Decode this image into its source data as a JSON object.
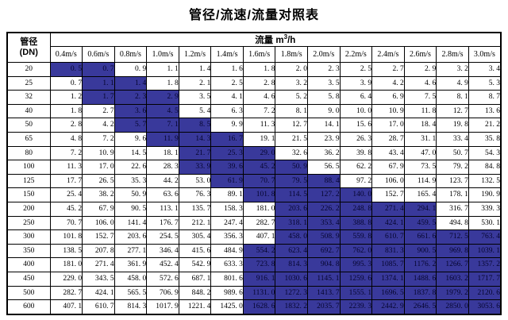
{
  "title": "管径/流速/流量对照表",
  "colors": {
    "highlight_bg": "#39399B",
    "border": "#000000",
    "text": "#000000",
    "page_bg": "#FFFFFF"
  },
  "table": {
    "corner": {
      "line1": "管径",
      "line2": "(DN)"
    },
    "flow": {
      "prefix": "流量 m",
      "sup": "3",
      "suffix": "/h"
    },
    "velocity_headers": [
      "0.4m/s",
      "0.6m/s",
      "0.8m/s",
      "1.0m/s",
      "1.2m/s",
      "1.4m/s",
      "1.6m/s",
      "1.8m/s",
      "2.0m/s",
      "2.2m/s",
      "2.4m/s",
      "2.6m/s",
      "2.8m/s",
      "3.0m/s"
    ],
    "rows": [
      {
        "dn": "20",
        "values": [
          "0. 5",
          "0. 7",
          "0. 9",
          "1. 1",
          "1. 4",
          "1. 6",
          "1. 8",
          "2. 0",
          "2. 3",
          "2. 5",
          "2. 7",
          "2. 9",
          "3. 2",
          "3. 4"
        ],
        "hl": [
          0,
          1
        ]
      },
      {
        "dn": "25",
        "values": [
          "0. 7",
          "1. 1",
          "1. 4",
          "1. 8",
          "2. 1",
          "2. 5",
          "2. 8",
          "3. 2",
          "3. 5",
          "3. 9",
          "4. 2",
          "4. 6",
          "4. 9",
          "5. 3"
        ],
        "hl": [
          1,
          2
        ]
      },
      {
        "dn": "32",
        "values": [
          "1. 2",
          "1. 7",
          "2. 3",
          "2. 9",
          "3. 5",
          "4. 1",
          "4. 6",
          "5. 2",
          "5. 8",
          "6. 4",
          "6. 9",
          "7. 5",
          "8. 1",
          "8. 7"
        ],
        "hl": [
          1,
          3
        ]
      },
      {
        "dn": "40",
        "values": [
          "1. 8",
          "2. 7",
          "3. 6",
          "4. 5",
          "5. 4",
          "6. 3",
          "7. 2",
          "8. 1",
          "9. 0",
          "10. 0",
          "10. 9",
          "11. 8",
          "12. 7",
          "13. 6"
        ],
        "hl": [
          2,
          3
        ]
      },
      {
        "dn": "50",
        "values": [
          "2. 8",
          "4. 2",
          "5. 7",
          "7. 1",
          "8. 5",
          "9. 9",
          "11. 3",
          "12. 7",
          "14. 1",
          "15. 6",
          "17. 0",
          "18. 4",
          "19. 8",
          "21. 2"
        ],
        "hl": [
          2,
          4
        ]
      },
      {
        "dn": "65",
        "values": [
          "4. 8",
          "7. 2",
          "9. 6",
          "11. 9",
          "14. 3",
          "16. 7",
          "19. 1",
          "21. 5",
          "23. 9",
          "26. 3",
          "28. 7",
          "31. 1",
          "33. 4",
          "35. 8"
        ],
        "hl": [
          3,
          5
        ]
      },
      {
        "dn": "80",
        "values": [
          "7. 2",
          "10. 9",
          "14. 5",
          "18. 1",
          "21. 7",
          "25. 3",
          "29. 0",
          "32. 6",
          "36. 2",
          "39. 8",
          "43. 4",
          "47. 0",
          "50. 7",
          "54. 3"
        ],
        "hl": [
          4,
          6
        ]
      },
      {
        "dn": "100",
        "values": [
          "11. 3",
          "17. 0",
          "22. 6",
          "28. 3",
          "33. 9",
          "39. 6",
          "45. 2",
          "50. 9",
          "56. 5",
          "62. 2",
          "67. 9",
          "73. 5",
          "79. 2",
          "84. 8"
        ],
        "hl": [
          4,
          7
        ]
      },
      {
        "dn": "125",
        "values": [
          "17. 7",
          "26. 5",
          "35. 3",
          "44. 2",
          "53. 0",
          "61. 9",
          "70. 7",
          "79. 5",
          "88. 4",
          "97. 2",
          "106. 0",
          "114. 9",
          "123. 7",
          "132. 5"
        ],
        "hl": [
          5,
          8
        ]
      },
      {
        "dn": "150",
        "values": [
          "25. 4",
          "38. 2",
          "50. 9",
          "63. 6",
          "76. 3",
          "89. 1",
          "101. 8",
          "114. 5",
          "127. 2",
          "140. 0",
          "152. 7",
          "165. 4",
          "178. 1",
          "190. 9"
        ],
        "hl": [
          6,
          9
        ]
      },
      {
        "dn": "200",
        "values": [
          "45. 2",
          "67. 9",
          "90. 5",
          "113. 1",
          "135. 7",
          "158. 3",
          "181. 0",
          "203. 6",
          "226. 2",
          "248. 8",
          "271. 4",
          "294. 1",
          "316. 7",
          "339. 3"
        ],
        "hl": [
          7,
          11
        ]
      },
      {
        "dn": "250",
        "values": [
          "70. 7",
          "106. 0",
          "141. 4",
          "176. 7",
          "212. 1",
          "247. 4",
          "282. 7",
          "318. 1",
          "353. 4",
          "388. 8",
          "424. 1",
          "459. 5",
          "494. 8",
          "530. 1"
        ],
        "hl": [
          7,
          11
        ]
      },
      {
        "dn": "300",
        "values": [
          "101. 8",
          "152. 7",
          "203. 6",
          "254. 5",
          "305. 4",
          "356. 3",
          "407. 1",
          "458. 0",
          "508. 9",
          "559. 8",
          "610. 7",
          "661. 6",
          "712. 5",
          "763. 4"
        ],
        "hl": [
          7,
          13
        ]
      },
      {
        "dn": "350",
        "values": [
          "138. 5",
          "207. 8",
          "277. 1",
          "346. 4",
          "415. 6",
          "484. 9",
          "554. 2",
          "623. 4",
          "692. 7",
          "762. 0",
          "831. 3",
          "900. 5",
          "969. 8",
          "1039. 1"
        ],
        "hl": [
          6,
          13
        ]
      },
      {
        "dn": "400",
        "values": [
          "181. 0",
          "271. 4",
          "361. 9",
          "452. 4",
          "542. 9",
          "633. 3",
          "723. 8",
          "814. 3",
          "904. 8",
          "995. 3",
          "1085. 7",
          "1176. 2",
          "1266. 7",
          "1357. 2"
        ],
        "hl": [
          6,
          13
        ]
      },
      {
        "dn": "450",
        "values": [
          "229. 0",
          "343. 5",
          "458. 0",
          "572. 6",
          "687. 1",
          "801. 6",
          "916. 1",
          "1030. 6",
          "1145. 1",
          "1259. 6",
          "1374. 1",
          "1488. 6",
          "1603. 2",
          "1717. 7"
        ],
        "hl": [
          6,
          13
        ]
      },
      {
        "dn": "500",
        "values": [
          "282. 7",
          "424. 1",
          "565. 5",
          "706. 9",
          "848. 2",
          "989. 6",
          "1131. 0",
          "1272. 3",
          "1413. 7",
          "1555. 1",
          "1696. 5",
          "1837. 8",
          "1979. 2",
          "2120. 6"
        ],
        "hl": [
          6,
          13
        ]
      },
      {
        "dn": "600",
        "values": [
          "407. 1",
          "610. 7",
          "814. 3",
          "1017. 9",
          "1221. 4",
          "1425. 0",
          "1628. 6",
          "1832. 2",
          "2035. 7",
          "2239. 3",
          "2442. 9",
          "2646. 5",
          "2850. 0",
          "3053. 6"
        ],
        "hl": [
          6,
          13
        ]
      }
    ]
  }
}
